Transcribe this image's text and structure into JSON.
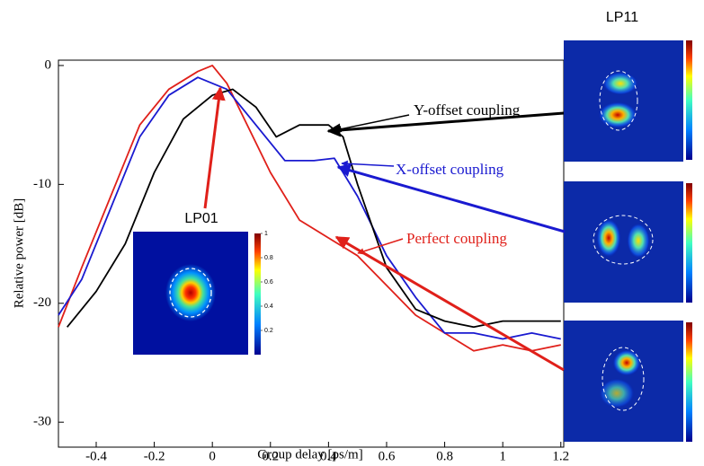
{
  "chart_data": {
    "type": "line",
    "xlabel": "Group delay [ps/m]",
    "ylabel": "Relative power [dB]",
    "xlim": [
      -0.53,
      1.21
    ],
    "ylim": [
      -32.1,
      0.45
    ],
    "xticks": [
      -0.4,
      -0.2,
      0,
      0.2,
      0.4,
      0.6,
      0.8,
      1,
      1.2
    ],
    "yticks": [
      0,
      -10,
      -20,
      -30
    ],
    "series": [
      {
        "name": "Perfect coupling",
        "color": "#e0201a",
        "x": [
          -0.53,
          -0.45,
          -0.35,
          -0.25,
          -0.15,
          -0.05,
          0,
          0.05,
          0.1,
          0.2,
          0.3,
          0.4,
          0.5,
          0.6,
          0.7,
          0.8,
          0.9,
          1.0,
          1.1,
          1.2
        ],
        "values": [
          -22,
          -17,
          -11,
          -5,
          -2,
          -0.5,
          0,
          -1.5,
          -4,
          -9,
          -13,
          -14.5,
          -16,
          -18.5,
          -21,
          -22.5,
          -24,
          -23.5,
          -24,
          -23.5
        ]
      },
      {
        "name": "X-offset coupling",
        "color": "#1a1ad0",
        "x": [
          -0.53,
          -0.45,
          -0.35,
          -0.25,
          -0.15,
          -0.05,
          0,
          0.05,
          0.1,
          0.2,
          0.25,
          0.35,
          0.42,
          0.5,
          0.6,
          0.7,
          0.8,
          0.9,
          1.0,
          1.1,
          1.2
        ],
        "values": [
          -21,
          -18,
          -12,
          -6,
          -2.5,
          -1,
          -1.5,
          -2,
          -3.5,
          -6.5,
          -8,
          -8,
          -7.8,
          -11,
          -16,
          -19.5,
          -22.5,
          -22.5,
          -23,
          -22.5,
          -23
        ]
      },
      {
        "name": "Y-offset coupling",
        "color": "#000000",
        "x": [
          -0.5,
          -0.4,
          -0.3,
          -0.2,
          -0.1,
          0,
          0.07,
          0.15,
          0.22,
          0.3,
          0.4,
          0.45,
          0.5,
          0.6,
          0.7,
          0.8,
          0.9,
          1.0,
          1.1,
          1.2
        ],
        "values": [
          -22,
          -19,
          -15,
          -9,
          -4.5,
          -2.5,
          -2,
          -3.5,
          -6,
          -5,
          -5,
          -6,
          -10,
          -17,
          -20.5,
          -21.5,
          -22,
          -21.5,
          -21.5,
          -21.5
        ]
      }
    ],
    "annotations": [
      {
        "text": "Y-offset coupling",
        "color": "#000000"
      },
      {
        "text": "X-offset coupling",
        "color": "#1a1ad0"
      },
      {
        "text": "Perfect coupling",
        "color": "#e0201a"
      },
      {
        "text": "LP01",
        "color": "#000000"
      },
      {
        "text": "LP11",
        "color": "#000000"
      }
    ],
    "colorbar": {
      "lim": [
        0,
        1
      ],
      "ticks": [
        0.2,
        0.4,
        0.6,
        0.8,
        1
      ]
    }
  }
}
